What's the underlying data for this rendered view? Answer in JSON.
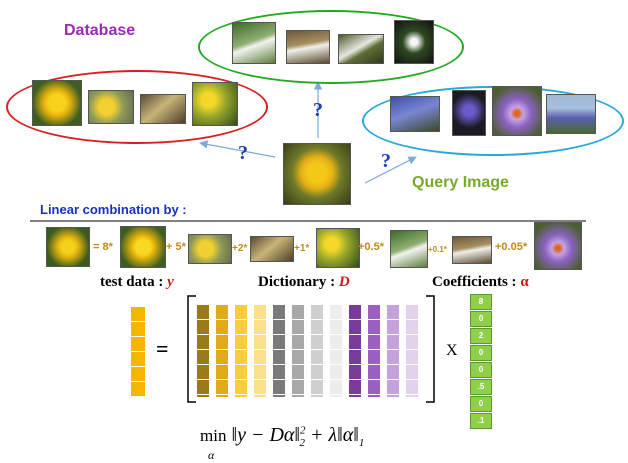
{
  "labels": {
    "database": "Database",
    "query_image": "Query Image",
    "linear_combination": "Linear combination by :",
    "test_data": "test data : ",
    "test_data_symbol": "y",
    "dictionary": "Dictionary : ",
    "dictionary_symbol": "D",
    "coefficients": "Coefficients : ",
    "coefficients_symbol": "α",
    "equals": "=",
    "times": "X",
    "question_mark": "?"
  },
  "equation_terms": {
    "eq8": "= 8*",
    "p5": "+ 5*",
    "p2": "+2*",
    "p1": "+1*",
    "p05": "+0.5*",
    "p01": "+0.1*",
    "p005": "+0.05*"
  },
  "coefficient_vector": [
    "8",
    "0",
    "2",
    "0",
    "0",
    ".5",
    "0",
    ".1"
  ],
  "dictionary_colors": [
    "#9c7a1c",
    "#e0ab18",
    "#fccc3a",
    "#fde08a",
    "#7a7a7a",
    "#a8a8a8",
    "#cfcfcf",
    "#ececec",
    "#7a3b99",
    "#9b5fc0",
    "#c4a2dc",
    "#e2d2ee"
  ],
  "test_color": "#f7b500",
  "objective": {
    "op": "min",
    "sub": "α",
    "lhs": "‖y − Dα‖",
    "sup2": "2",
    "sub2": "2",
    "plus": " + λ‖α‖",
    "sub1": "1"
  }
}
